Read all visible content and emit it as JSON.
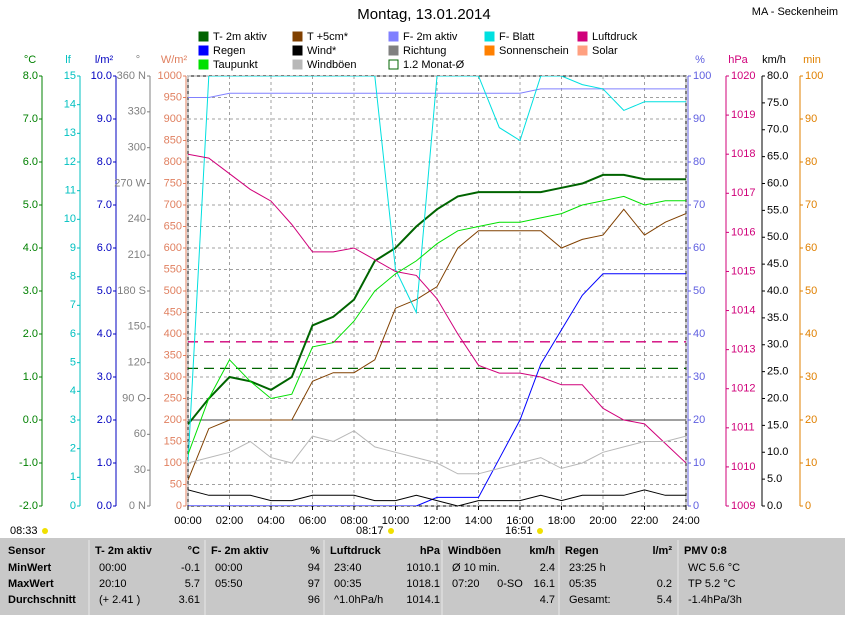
{
  "chart_data": {
    "type": "line",
    "title": "Montag, 13.01.2014",
    "station": "MA - Seckenheim",
    "x": [
      0,
      1,
      2,
      3,
      4,
      5,
      6,
      7,
      8,
      9,
      10,
      11,
      12,
      13,
      14,
      15,
      16,
      17,
      18,
      19,
      20,
      21,
      22,
      23,
      24
    ],
    "xlim": [
      0,
      24
    ],
    "xticks": [
      {
        "value": 0,
        "label": "00:00"
      },
      {
        "value": 2,
        "label": "02:00"
      },
      {
        "value": 4,
        "label": "04:00"
      },
      {
        "value": 6,
        "label": "06:00"
      },
      {
        "value": 8,
        "label": "08:00"
      },
      {
        "value": 10,
        "label": "10:00"
      },
      {
        "value": 12,
        "label": "12:00"
      },
      {
        "value": 14,
        "label": "14:00"
      },
      {
        "value": 16,
        "label": "16:00"
      },
      {
        "value": 18,
        "label": "18:00"
      },
      {
        "value": 20,
        "label": "20:00"
      },
      {
        "value": 22,
        "label": "22:00"
      },
      {
        "value": 24,
        "label": "24:00"
      }
    ],
    "grid": true,
    "axes": [
      {
        "label": "°C",
        "color": "#008000",
        "lim": [
          -2,
          8
        ],
        "ticks": [
          {
            "value": -2,
            "label": "-2.0"
          },
          {
            "value": -1,
            "label": "-1.0"
          },
          {
            "value": 0,
            "label": "0.0"
          },
          {
            "value": 1,
            "label": "1.0"
          },
          {
            "value": 2,
            "label": "2.0"
          },
          {
            "value": 3,
            "label": "3.0"
          },
          {
            "value": 4,
            "label": "4.0"
          },
          {
            "value": 5,
            "label": "5.0"
          },
          {
            "value": 6,
            "label": "6.0"
          },
          {
            "value": 7,
            "label": "7.0"
          },
          {
            "value": 8,
            "label": "8.0"
          }
        ]
      },
      {
        "label": "lf",
        "color": "#00c0c0",
        "lim": [
          0,
          15
        ],
        "ticks": [
          0,
          1,
          2,
          3,
          4,
          5,
          6,
          7,
          8,
          9,
          10,
          11,
          12,
          13,
          14,
          15
        ]
      },
      {
        "label": "l/m²",
        "color": "#0000c0",
        "lim": [
          0,
          10
        ],
        "ticks": [
          {
            "value": 0,
            "label": "0.0"
          },
          {
            "value": 1,
            "label": "1.0"
          },
          {
            "value": 2,
            "label": "2.0"
          },
          {
            "value": 3,
            "label": "3.0"
          },
          {
            "value": 4,
            "label": "4.0"
          },
          {
            "value": 5,
            "label": "5.0"
          },
          {
            "value": 6,
            "label": "6.0"
          },
          {
            "value": 7,
            "label": "7.0"
          },
          {
            "value": 8,
            "label": "8.0"
          },
          {
            "value": 9,
            "label": "9.0"
          },
          {
            "value": 10,
            "label": "10.0"
          }
        ]
      },
      {
        "label": "°",
        "color": "#808080",
        "lim": [
          0,
          360
        ],
        "ticks": [
          {
            "value": 0,
            "label": "0 N"
          },
          30,
          60,
          {
            "value": 90,
            "label": "90 O"
          },
          120,
          150,
          {
            "value": 180,
            "label": "180 S"
          },
          210,
          240,
          {
            "value": 270,
            "label": "270 W"
          },
          300,
          330,
          {
            "value": 360,
            "label": "360 N"
          }
        ]
      },
      {
        "label": "W/m²",
        "color": "#e08060",
        "lim": [
          0,
          1000
        ],
        "ticks": [
          0,
          50,
          100,
          150,
          200,
          250,
          300,
          350,
          400,
          450,
          500,
          550,
          600,
          650,
          700,
          750,
          800,
          850,
          900,
          950,
          1000
        ]
      },
      {
        "label": "%",
        "color": "#6060e0",
        "lim": [
          0,
          100
        ],
        "ticks": [
          0,
          10,
          20,
          30,
          40,
          50,
          60,
          70,
          80,
          90,
          100
        ]
      },
      {
        "label": "hPa",
        "color": "#d0007a",
        "lim": [
          1009,
          1020
        ],
        "ticks": [
          1009,
          1010,
          1011,
          1012,
          1013,
          1014,
          1015,
          1016,
          1017,
          1018,
          1019,
          1020
        ]
      },
      {
        "label": "km/h",
        "color": "#000000",
        "lim": [
          0,
          80
        ],
        "ticks": [
          {
            "value": 0,
            "label": "0.0"
          },
          {
            "value": 5,
            "label": "5.0"
          },
          {
            "value": 10,
            "label": "10.0"
          },
          {
            "value": 15,
            "label": "15.0"
          },
          {
            "value": 20,
            "label": "20.0"
          },
          {
            "value": 25,
            "label": "25.0"
          },
          {
            "value": 30,
            "label": "30.0"
          },
          {
            "value": 35,
            "label": "35.0"
          },
          {
            "value": 40,
            "label": "40.0"
          },
          {
            "value": 45,
            "label": "45.0"
          },
          {
            "value": 50,
            "label": "50.0"
          },
          {
            "value": 55,
            "label": "55.0"
          },
          {
            "value": 60,
            "label": "60.0"
          },
          {
            "value": 65,
            "label": "65.0"
          },
          {
            "value": 70,
            "label": "70.0"
          },
          {
            "value": 75,
            "label": "75.0"
          },
          {
            "value": 80,
            "label": "80.0"
          }
        ]
      },
      {
        "label": "min",
        "color": "#e08000",
        "lim": [
          0,
          100
        ],
        "ticks": [
          0,
          10,
          20,
          30,
          40,
          50,
          60,
          70,
          80,
          90,
          100
        ]
      }
    ],
    "series": [
      {
        "name": "T- 2m aktiv",
        "color": "#006400",
        "axis": 0,
        "width": 2,
        "values": [
          -0.1,
          0.5,
          1.0,
          0.9,
          0.7,
          1.0,
          2.2,
          2.4,
          2.8,
          3.7,
          4.0,
          4.5,
          4.9,
          5.2,
          5.3,
          5.3,
          5.3,
          5.3,
          5.4,
          5.5,
          5.7,
          5.7,
          5.6,
          5.6,
          5.6
        ]
      },
      {
        "name": "T +5cm*",
        "color": "#804000",
        "axis": 0,
        "width": 1,
        "values": [
          -1.4,
          -0.2,
          0.0,
          0.0,
          0.0,
          0.0,
          0.9,
          1.1,
          1.1,
          1.4,
          2.6,
          2.8,
          3.1,
          4.0,
          4.4,
          4.4,
          4.4,
          4.4,
          4.0,
          4.2,
          4.3,
          4.9,
          4.3,
          4.6,
          4.8
        ]
      },
      {
        "name": "F- 2m aktiv",
        "color": "#8080ff",
        "axis": 5,
        "width": 1,
        "values": [
          95,
          95,
          96,
          96,
          96,
          96,
          96,
          96,
          96,
          96,
          96,
          96,
          96,
          96,
          96,
          96,
          96,
          97,
          97,
          97,
          97,
          97,
          97,
          97,
          97
        ]
      },
      {
        "name": "F- Blatt",
        "color": "#00e0e0",
        "axis": 5,
        "width": 1,
        "values": [
          10,
          100,
          100,
          100,
          100,
          100,
          100,
          100,
          100,
          100,
          55,
          45,
          100,
          100,
          100,
          88,
          85,
          100,
          100,
          98,
          97,
          92,
          94,
          94,
          94
        ]
      },
      {
        "name": "Luftdruck",
        "color": "#d0007a",
        "axis": 6,
        "width": 1,
        "values": [
          1018.0,
          1017.9,
          1017.5,
          1017.1,
          1016.8,
          1016.2,
          1015.5,
          1015.5,
          1015.6,
          1015.3,
          1015.0,
          1014.9,
          1014.3,
          1013.4,
          1012.6,
          1012.4,
          1012.4,
          1012.3,
          1012.1,
          1012.1,
          1011.5,
          1011.2,
          1011.1,
          1010.6,
          1010.1
        ]
      },
      {
        "name": "Regen",
        "color": "#0000ff",
        "axis": 2,
        "width": 1,
        "values": [
          0,
          0,
          0,
          0,
          0,
          0,
          0,
          0,
          0,
          0,
          0,
          0,
          0.2,
          0.2,
          0.2,
          1.1,
          2.0,
          3.3,
          4.1,
          4.9,
          5.4,
          5.4,
          5.4,
          5.4,
          5.4
        ]
      },
      {
        "name": "Wind*",
        "color": "#000000",
        "axis": 7,
        "width": 1,
        "values": [
          3,
          2,
          2,
          2,
          1,
          1,
          2,
          2,
          2,
          1,
          1,
          2,
          1,
          0,
          1,
          1,
          1,
          2,
          1,
          2,
          2,
          2,
          3,
          2,
          2
        ]
      },
      {
        "name": "Taupunkt",
        "color": "#00e000",
        "axis": 0,
        "width": 1,
        "values": [
          -0.8,
          0.5,
          1.4,
          0.9,
          0.5,
          0.6,
          1.7,
          1.8,
          2.3,
          3.0,
          3.4,
          3.7,
          4.1,
          4.4,
          4.5,
          4.6,
          4.6,
          4.7,
          4.8,
          5.0,
          5.1,
          5.2,
          5.0,
          5.1,
          5.1
        ]
      },
      {
        "name": "Windböen",
        "color": "#b8b8b8",
        "axis": 7,
        "width": 1,
        "values": [
          8,
          9,
          10,
          12,
          9,
          8,
          13,
          12,
          14,
          11,
          10,
          9,
          8,
          6,
          6,
          7,
          8,
          9,
          7,
          8,
          10,
          11,
          12,
          12,
          13
        ]
      }
    ],
    "extra_legend": [
      {
        "name": "Richtung",
        "color": "#808080"
      },
      {
        "name": "Sonnenschein",
        "color": "#ff8000"
      },
      {
        "name": "Solar",
        "color": "#ffa080"
      },
      {
        "name": "1.2 Monat-Ø",
        "color": "#006400",
        "hollow": true,
        "lines": [
          {
            "axis": 0,
            "value": 1.2,
            "color": "#006400"
          },
          {
            "axis": 6,
            "value": 1013.2,
            "color": "#d0007a"
          }
        ]
      }
    ],
    "annotations": [
      "08:33",
      "08:17",
      "16:51"
    ]
  },
  "table": {
    "columns": [
      {
        "title": "Sensor"
      },
      {
        "title": "T- 2m aktiv",
        "unit": "°C"
      },
      {
        "title": "F- 2m aktiv",
        "unit": "%"
      },
      {
        "title": "Luftdruck",
        "unit": "hPa"
      },
      {
        "title": "Windböen",
        "unit": "km/h"
      },
      {
        "title": "Regen",
        "unit": "l/m²"
      },
      {
        "title": "PMV 0:8"
      }
    ],
    "rows": [
      {
        "label": "MinWert",
        "cells": [
          {
            "left": "00:00",
            "right": "-0.1"
          },
          {
            "left": "00:00",
            "right": "94"
          },
          {
            "left": "23:40",
            "right": "1010.1"
          },
          {
            "left": "Ø 10 min.",
            "right": "2.4"
          },
          {
            "left": "23:25 h"
          },
          {
            "left": "WC 5.6 °C"
          }
        ]
      },
      {
        "label": "MaxWert",
        "cells": [
          {
            "left": "20:10",
            "right": "5.7"
          },
          {
            "left": "05:50",
            "right": "97"
          },
          {
            "left": "00:35",
            "right": "1018.1"
          },
          {
            "left": "07:20",
            "mid": "0-SO",
            "right": "16.1"
          },
          {
            "left": "05:35",
            "right": "0.2"
          },
          {
            "left": "TP 5.2 °C"
          }
        ]
      },
      {
        "label": "Durchschnitt",
        "cells": [
          {
            "left": "(+ 2.41 )",
            "right": "3.61"
          },
          {
            "right": "96"
          },
          {
            "left": "^1.0hPa/h",
            "right": "1014.1"
          },
          {
            "right": "4.7"
          },
          {
            "left": "Gesamt:",
            "right": "5.4"
          },
          {
            "left": "-1.4hPa/3h"
          }
        ]
      }
    ]
  }
}
